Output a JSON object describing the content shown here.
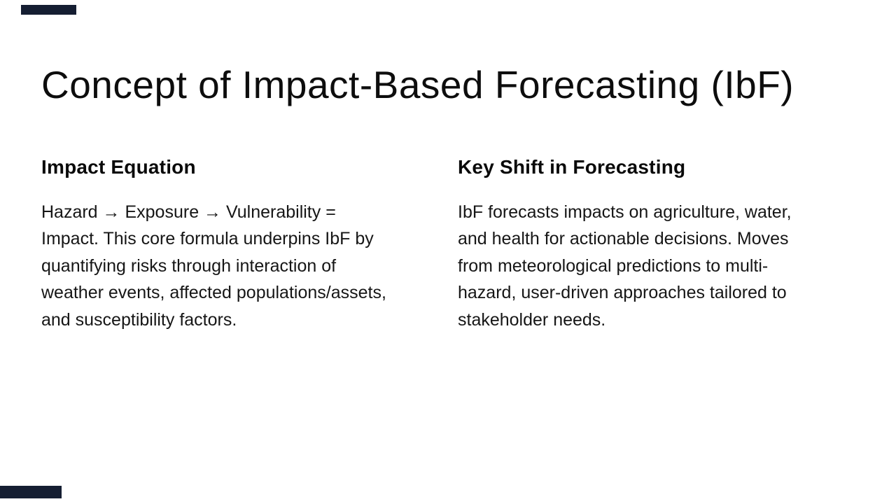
{
  "slide": {
    "title": "Concept of Impact-Based Forecasting (IbF)",
    "columns": [
      {
        "heading": "Impact Equation",
        "body": "Hazard → Exposure → Vulnerability = Impact. This core formula underpins IbF by quantifying risks through interaction of weather events, affected populations/assets, and susceptibility factors."
      },
      {
        "heading": "Key Shift in Forecasting",
        "body": "IbF forecasts impacts on agriculture, water, and health for actionable decisions. Moves from meteorological predictions to multi-hazard, user-driven approaches tailored to stakeholder needs."
      }
    ],
    "colors": {
      "accent": "#151E32",
      "background": "#FFFFFF",
      "text": "#161616"
    }
  }
}
